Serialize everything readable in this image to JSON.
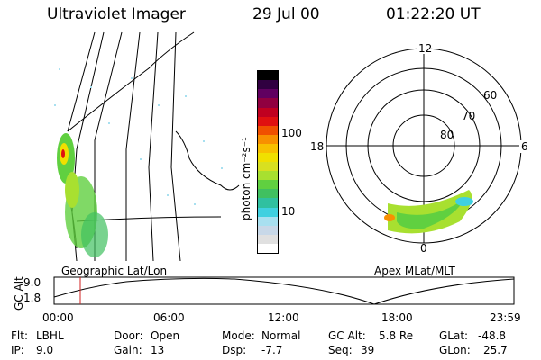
{
  "header": {
    "title": "Ultraviolet Imager",
    "date": "29 Jul 00",
    "time": "01:22:20 UT"
  },
  "left_panel": {
    "label": "Geographic Lat/Lon"
  },
  "colorbar": {
    "unit_label": "photon cm⁻²s⁻¹",
    "ticks": [
      "100",
      "10"
    ],
    "colors": [
      "#ffffff",
      "#e0e0e0",
      "#c8d8e8",
      "#a8e0f0",
      "#40d0e0",
      "#30c0a0",
      "#40c060",
      "#60d040",
      "#a8e030",
      "#d8e020",
      "#f0e000",
      "#f8c000",
      "#f89000",
      "#f05000",
      "#e01010",
      "#c00020",
      "#900040",
      "#600060",
      "#300040",
      "#000000"
    ]
  },
  "polar_plot": {
    "label": "Apex MLat/MLT",
    "mlt_labels": [
      "12",
      "18",
      "6",
      "0"
    ],
    "lat_labels": [
      "60",
      "70",
      "80"
    ]
  },
  "timeline": {
    "axis_label": "GC Alt",
    "ticks_y": [
      "9.0",
      "1.8"
    ],
    "ticks_x": [
      "00:00",
      "06:00",
      "12:00",
      "18:00",
      "23:59"
    ],
    "marker_color": "#d02020"
  },
  "info": {
    "flt_label": "Flt:",
    "flt_value": "LBHL",
    "ip_label": "IP:",
    "ip_value": "9.0",
    "door_label": "Door:",
    "door_value": "Open",
    "gain_label": "Gain:",
    "gain_value": "13",
    "mode_label": "Mode:",
    "mode_value": "Normal",
    "dsp_label": "Dsp:",
    "dsp_value": "-7.7",
    "gcalt_label": "GC Alt:",
    "gcalt_value": "5.8 Re",
    "seq_label": "Seq:",
    "seq_value": "39",
    "glat_label": "GLat:",
    "glat_value": "-48.8",
    "glon_label": "GLon:",
    "glon_value": "25.7"
  }
}
